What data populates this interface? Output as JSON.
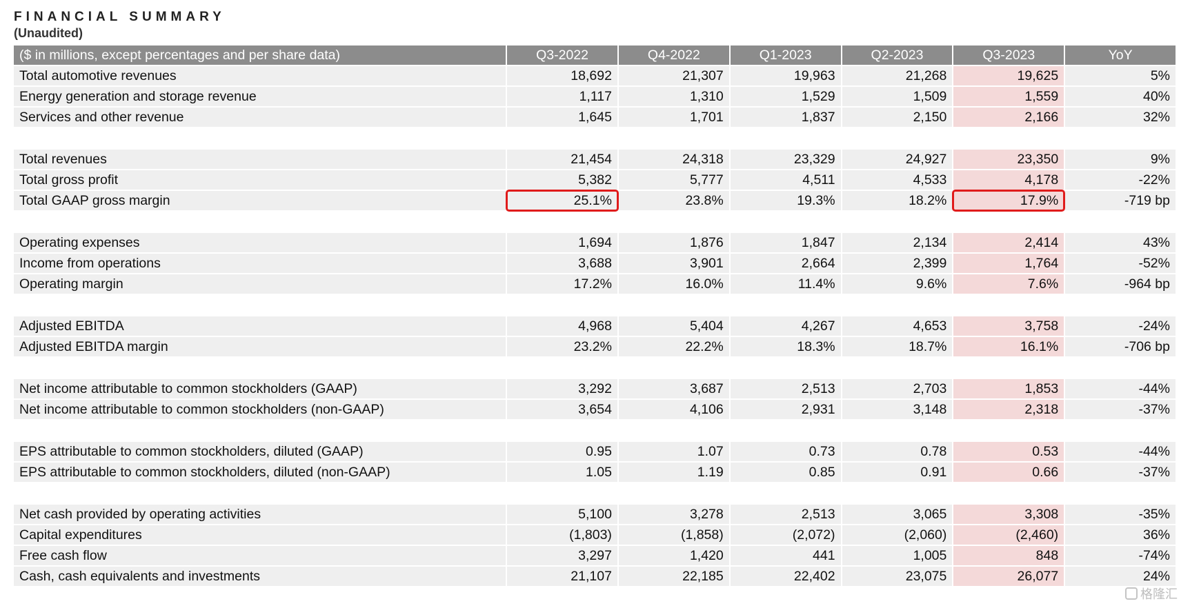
{
  "title": "FINANCIAL SUMMARY",
  "subtitle": "(Unaudited)",
  "header": [
    "($ in millions, except percentages and per share data)",
    "Q3-2022",
    "Q4-2022",
    "Q1-2023",
    "Q2-2023",
    "Q3-2023",
    "YoY"
  ],
  "highlight_color": "#f4d9d9",
  "header_color": "#8c8c8c",
  "box_color": "#e01b1b",
  "groups": [
    [
      [
        "Total automotive revenues",
        "18,692",
        "21,307",
        "19,963",
        "21,268",
        "19,625",
        "5%"
      ],
      [
        "Energy generation and storage revenue",
        "1,117",
        "1,310",
        "1,529",
        "1,509",
        "1,559",
        "40%"
      ],
      [
        "Services and other revenue",
        "1,645",
        "1,701",
        "1,837",
        "2,150",
        "2,166",
        "32%"
      ]
    ],
    [
      [
        "Total revenues",
        "21,454",
        "24,318",
        "23,329",
        "24,927",
        "23,350",
        "9%"
      ],
      [
        "Total gross profit",
        "5,382",
        "5,777",
        "4,511",
        "4,533",
        "4,178",
        "-22%"
      ],
      [
        "Total GAAP gross margin",
        "25.1%",
        "23.8%",
        "19.3%",
        "18.2%",
        "17.9%",
        "-719 bp"
      ]
    ],
    [
      [
        "Operating expenses",
        "1,694",
        "1,876",
        "1,847",
        "2,134",
        "2,414",
        "43%"
      ],
      [
        "Income from operations",
        "3,688",
        "3,901",
        "2,664",
        "2,399",
        "1,764",
        "-52%"
      ],
      [
        "Operating margin",
        "17.2%",
        "16.0%",
        "11.4%",
        "9.6%",
        "7.6%",
        "-964 bp"
      ]
    ],
    [
      [
        "Adjusted EBITDA",
        "4,968",
        "5,404",
        "4,267",
        "4,653",
        "3,758",
        "-24%"
      ],
      [
        "Adjusted EBITDA margin",
        "23.2%",
        "22.2%",
        "18.3%",
        "18.7%",
        "16.1%",
        "-706 bp"
      ]
    ],
    [
      [
        "Net income attributable to common stockholders (GAAP)",
        "3,292",
        "3,687",
        "2,513",
        "2,703",
        "1,853",
        "-44%"
      ],
      [
        "Net income attributable to common stockholders (non-GAAP)",
        "3,654",
        "4,106",
        "2,931",
        "3,148",
        "2,318",
        "-37%"
      ]
    ],
    [
      [
        "EPS attributable to common stockholders, diluted (GAAP)",
        "0.95",
        "1.07",
        "0.73",
        "0.78",
        "0.53",
        "-44%"
      ],
      [
        "EPS attributable to common stockholders, diluted (non-GAAP)",
        "1.05",
        "1.19",
        "0.85",
        "0.91",
        "0.66",
        "-37%"
      ]
    ],
    [
      [
        "Net cash provided by operating activities",
        "5,100",
        "3,278",
        "2,513",
        "3,065",
        "3,308",
        "-35%"
      ],
      [
        "Capital expenditures",
        "(1,803)",
        "(1,858)",
        "(2,072)",
        "(2,060)",
        "(2,460)",
        "36%"
      ],
      [
        "Free cash flow",
        "3,297",
        "1,420",
        "441",
        "1,005",
        "848",
        "-74%"
      ],
      [
        "Cash, cash equivalents and investments",
        "21,107",
        "22,185",
        "22,402",
        "23,075",
        "26,077",
        "24%"
      ]
    ]
  ],
  "watermark": "格隆汇"
}
